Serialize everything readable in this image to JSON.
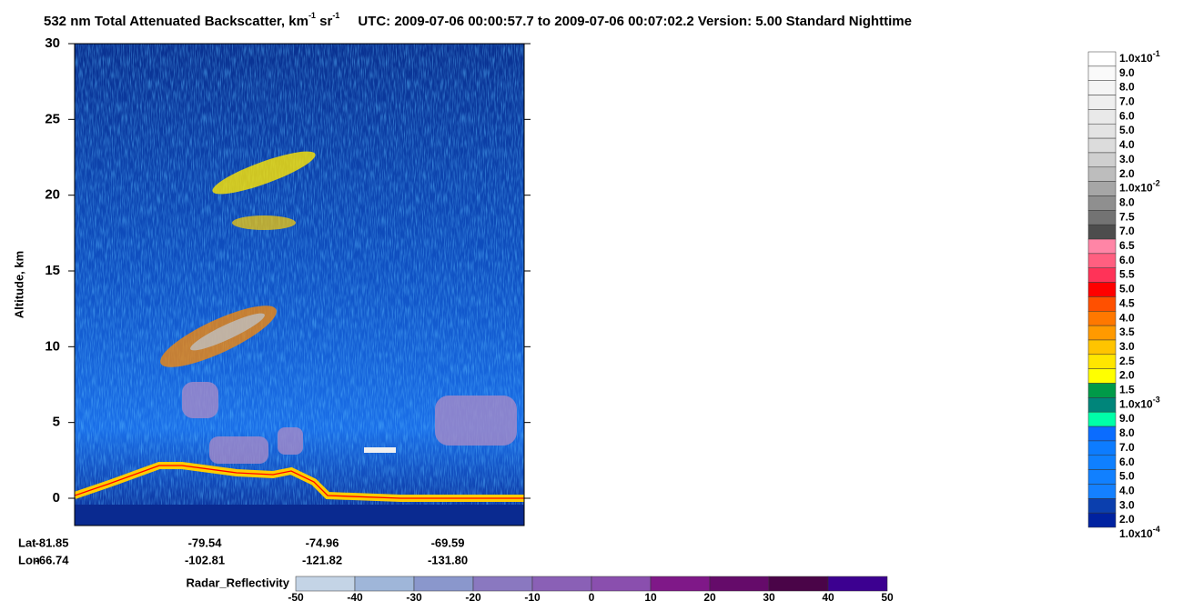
{
  "chart_data": {
    "type": "curtain",
    "title": {
      "main": "532 nm Total Attenuated Backscatter, km",
      "sup1": "-1",
      "mid": " sr",
      "sup2": "-1",
      "rest": "UTC:  2009-07-06 00:00:57.7  to  2009-07-06 00:07:02.2    Version: 5.00  Standard  Nighttime"
    },
    "y_label": "Altitude, km",
    "ylim": [
      -1.8,
      30
    ],
    "yticks": [
      0,
      5,
      10,
      15,
      20,
      25,
      30
    ],
    "lat_label": "Lat",
    "lon_label": "Lon",
    "lat": [
      "-81.85",
      "-79.54",
      "-74.96",
      "-69.59"
    ],
    "lon": [
      "-66.74",
      "-102.81",
      "-121.82",
      "-131.80"
    ],
    "colorbar": {
      "labels": [
        {
          "text": "1.0x10",
          "sup": "-1"
        },
        {
          "text": "9.0"
        },
        {
          "text": "8.0"
        },
        {
          "text": "7.0"
        },
        {
          "text": "6.0"
        },
        {
          "text": "5.0"
        },
        {
          "text": "4.0"
        },
        {
          "text": "3.0"
        },
        {
          "text": "2.0"
        },
        {
          "text": "1.0x10",
          "sup": "-2"
        },
        {
          "text": "8.0"
        },
        {
          "text": "7.5"
        },
        {
          "text": "7.0"
        },
        {
          "text": "6.5"
        },
        {
          "text": "6.0"
        },
        {
          "text": "5.5"
        },
        {
          "text": "5.0"
        },
        {
          "text": "4.5"
        },
        {
          "text": "4.0"
        },
        {
          "text": "3.5"
        },
        {
          "text": "3.0"
        },
        {
          "text": "2.5"
        },
        {
          "text": "2.0"
        },
        {
          "text": "1.5"
        },
        {
          "text": "1.0x10",
          "sup": "-3"
        },
        {
          "text": "9.0"
        },
        {
          "text": "8.0"
        },
        {
          "text": "7.0"
        },
        {
          "text": "6.0"
        },
        {
          "text": "5.0"
        },
        {
          "text": "4.0"
        },
        {
          "text": "3.0"
        },
        {
          "text": "2.0"
        },
        {
          "text": "1.0x10",
          "sup": "-4"
        }
      ],
      "colors": [
        "#ffffff",
        "#fafafa",
        "#f5f5f5",
        "#efefef",
        "#e9e9e9",
        "#e3e3e3",
        "#dcdcdc",
        "#cfcfcf",
        "#bdbdbd",
        "#a6a6a6",
        "#8f8f8f",
        "#737373",
        "#4d4d4d",
        "#ff85a6",
        "#ff5f80",
        "#ff3358",
        "#ff0000",
        "#ff5000",
        "#ff7800",
        "#ff9a00",
        "#ffc400",
        "#ffe600",
        "#ffff00",
        "#009a48",
        "#00857a",
        "#00ffa8",
        "#0a6cff",
        "#0d7cff",
        "#0f80ff",
        "#1180ff",
        "#1480ff",
        "#0b3fae",
        "#0022a0"
      ]
    },
    "radar": {
      "label": "Radar_Reflectivity",
      "ticks": [
        -50,
        -40,
        -30,
        -20,
        -10,
        0,
        10,
        20,
        30,
        40,
        50
      ],
      "colors": [
        "#c4d4e6",
        "#9fb6d9",
        "#8a97cc",
        "#8a78c0",
        "#8a60b6",
        "#8a4fae",
        "#7f1888",
        "#650b6a",
        "#4a0448",
        "#3c0090"
      ]
    }
  }
}
